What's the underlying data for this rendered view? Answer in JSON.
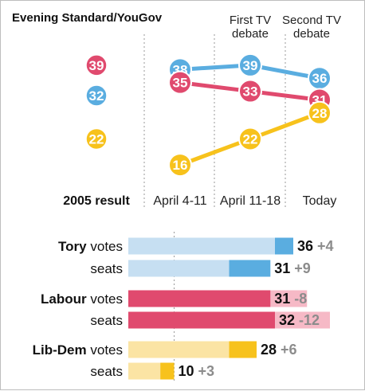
{
  "source": "Evening Standard/YouGov",
  "colors": {
    "tory": "#5aade0",
    "labour": "#e04a6e",
    "libdem": "#f7c21c",
    "tory_light": "#c6dff2",
    "labour_light": "#f6b9c6",
    "libdem_light": "#fbe4a4"
  },
  "chart_data": [
    {
      "type": "line",
      "x_label_2005": "2005 result",
      "categories": [
        "April 4-11",
        "April 11-18",
        "Today"
      ],
      "annotations": [
        {
          "text": "First TV debate",
          "lines": [
            "First TV",
            "debate"
          ],
          "at": "April 11-18"
        },
        {
          "text": "Second TV debate",
          "lines": [
            "Second TV",
            "debate"
          ],
          "at": "Today"
        }
      ],
      "result_2005": [
        {
          "party": "Tory",
          "value": 32
        },
        {
          "party": "Labour",
          "value": 39
        },
        {
          "party": "Lib-Dem",
          "value": 22
        }
      ],
      "series": [
        {
          "party": "Tory",
          "values": [
            38,
            39,
            36
          ]
        },
        {
          "party": "Labour",
          "values": [
            35,
            33,
            31
          ]
        },
        {
          "party": "Lib-Dem",
          "values": [
            16,
            22,
            28
          ]
        }
      ],
      "ylim": [
        14,
        41
      ],
      "grid": false
    },
    {
      "type": "bar",
      "gridline_at": 10,
      "xlim": [
        0,
        36
      ],
      "rows": [
        {
          "party": "Tory",
          "metric": "votes",
          "party_label": "Tory",
          "metric_label": "votes",
          "value": 36,
          "change": "+4",
          "previous": 32
        },
        {
          "party": "Tory",
          "metric": "seats",
          "party_label": "",
          "metric_label": "seats",
          "value": 31,
          "change": "+9",
          "previous": 22
        },
        {
          "party": "Labour",
          "metric": "votes",
          "party_label": "Labour",
          "metric_label": "votes",
          "value": 31,
          "change": "-8",
          "previous": 39
        },
        {
          "party": "Labour",
          "metric": "seats",
          "party_label": "",
          "metric_label": "seats",
          "value": 32,
          "change": "-12",
          "previous": 44
        },
        {
          "party": "Lib-Dem",
          "metric": "votes",
          "party_label": "Lib-Dem",
          "metric_label": "votes",
          "value": 28,
          "change": "+6",
          "previous": 22
        },
        {
          "party": "Lib-Dem",
          "metric": "seats",
          "party_label": "",
          "metric_label": "seats",
          "value": 10,
          "change": "+3",
          "previous": 7
        }
      ]
    }
  ]
}
